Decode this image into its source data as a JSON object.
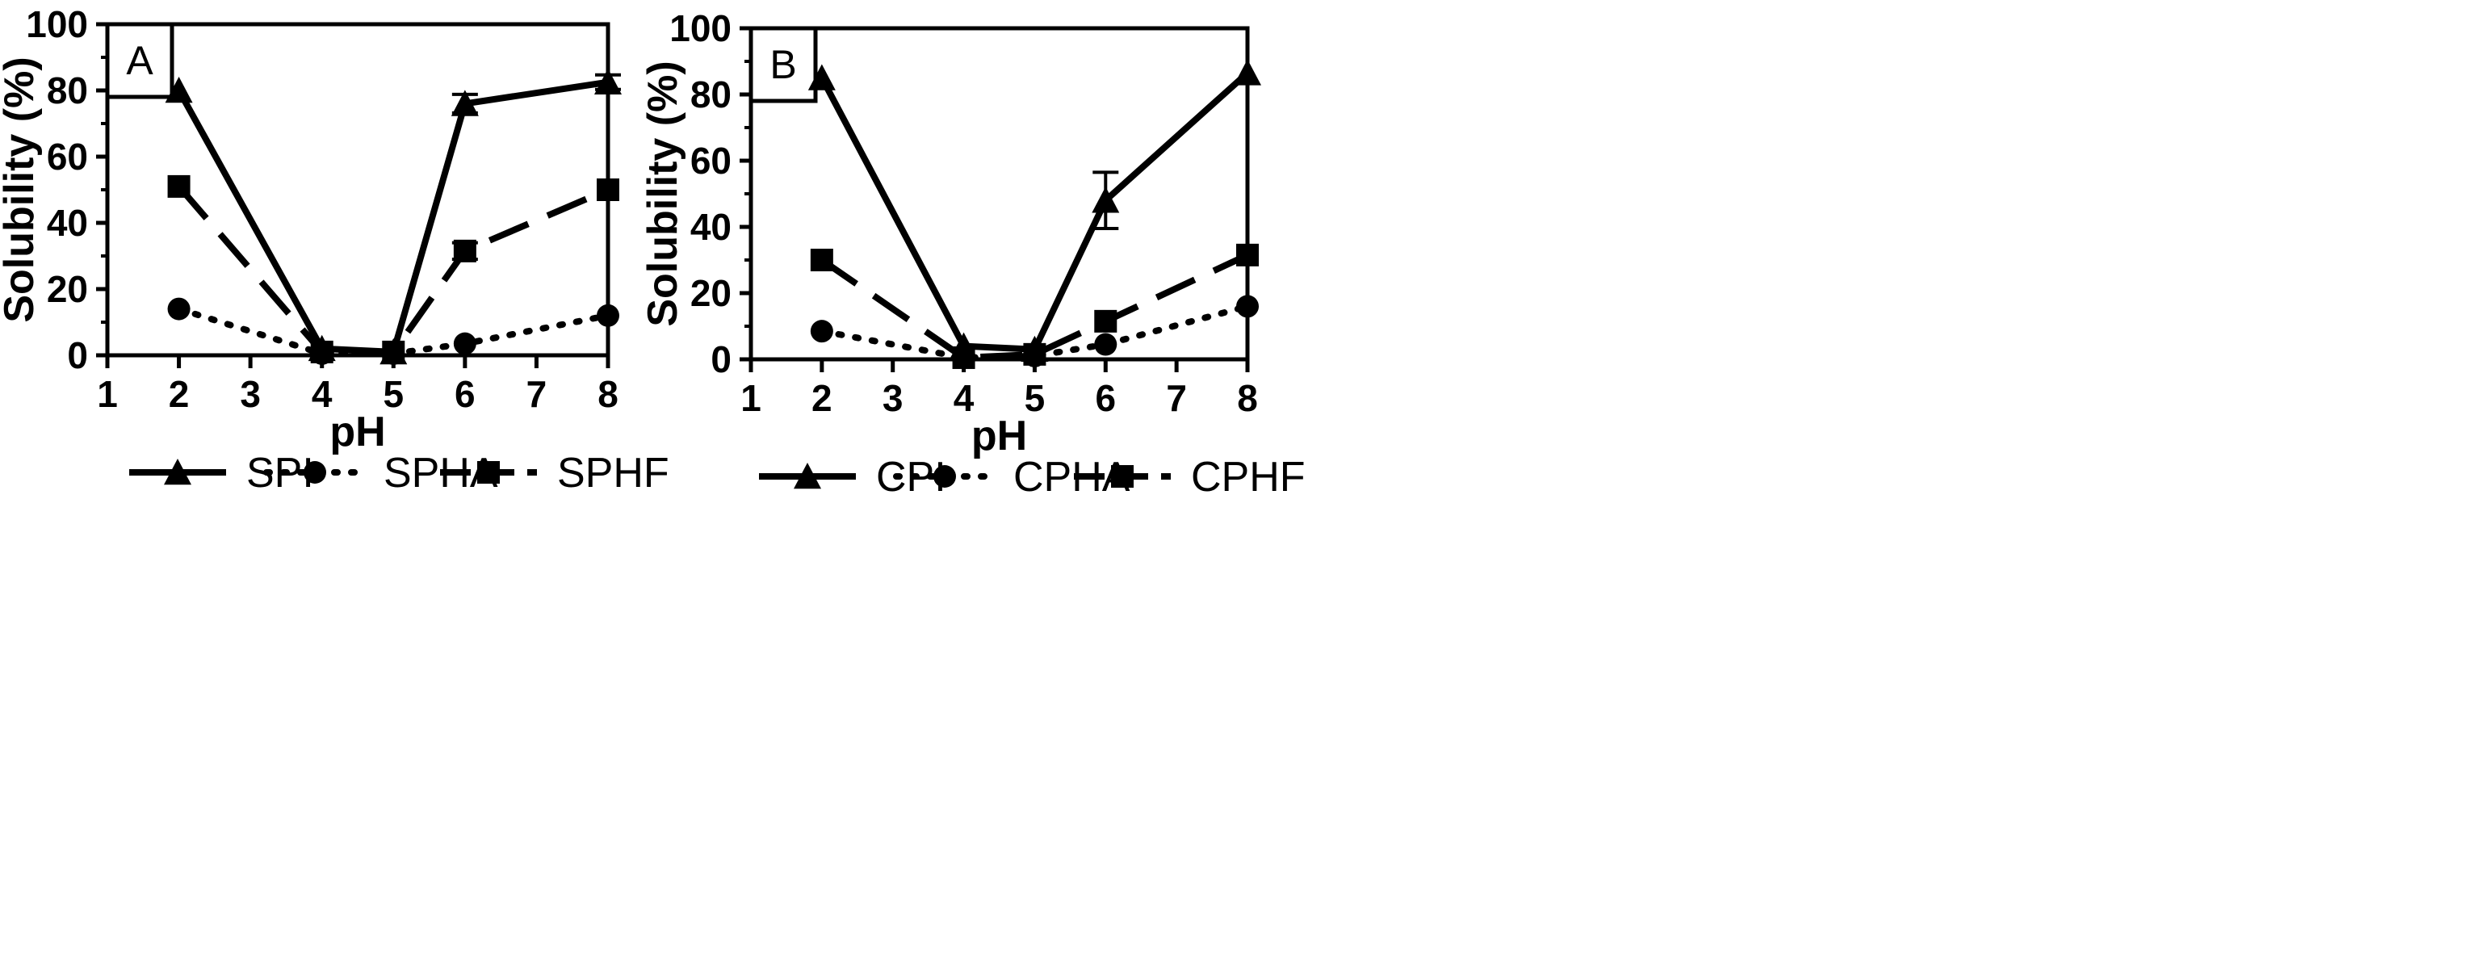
{
  "chart_data": [
    {
      "type": "line",
      "panel_label": "A",
      "xlabel": "pH",
      "ylabel": "Solubility (%)",
      "xlim": [
        1,
        8
      ],
      "ylim": [
        0,
        100
      ],
      "x_ticks": [
        "1",
        "2",
        "3",
        "4",
        "5",
        "6",
        "7",
        "8"
      ],
      "y_ticks": [
        "0",
        "20",
        "40",
        "60",
        "80",
        "100"
      ],
      "x": [
        2,
        4,
        5,
        6,
        8
      ],
      "series": [
        {
          "name": "SPI",
          "marker": "triangle",
          "line": "solid",
          "values": [
            80,
            2,
            1,
            76,
            82.5
          ],
          "errors": [
            0,
            0,
            0,
            2.8,
            2.2
          ]
        },
        {
          "name": "SPHA",
          "marker": "circle",
          "line": "dotted",
          "values": [
            14,
            0.5,
            0.5,
            3.5,
            12
          ],
          "errors": [
            0,
            0,
            0,
            0,
            0
          ]
        },
        {
          "name": "SPHF",
          "marker": "square",
          "line": "dashed",
          "values": [
            51,
            1,
            1,
            31.5,
            50
          ],
          "errors": [
            0,
            0,
            0,
            2.5,
            0
          ]
        }
      ],
      "legend_position": "bottom"
    },
    {
      "type": "line",
      "panel_label": "B",
      "xlabel": "pH",
      "ylabel": "Solubility (%)",
      "xlim": [
        1,
        8
      ],
      "ylim": [
        0,
        100
      ],
      "x_ticks": [
        "1",
        "2",
        "3",
        "4",
        "5",
        "6",
        "7",
        "8"
      ],
      "y_ticks": [
        "0",
        "20",
        "40",
        "60",
        "80",
        "100"
      ],
      "x": [
        2,
        4,
        5,
        6,
        8
      ],
      "series": [
        {
          "name": "CPI",
          "marker": "triangle",
          "line": "solid",
          "values": [
            85,
            4,
            3,
            48,
            86.5
          ],
          "errors": [
            0,
            0,
            0,
            8.5,
            0
          ]
        },
        {
          "name": "CPHA",
          "marker": "circle",
          "line": "dotted",
          "values": [
            8.5,
            0.5,
            1,
            4.5,
            16
          ],
          "errors": [
            0,
            0,
            0,
            0,
            0
          ]
        },
        {
          "name": "CPHF",
          "marker": "square",
          "line": "dashed",
          "values": [
            30,
            0.5,
            1.5,
            11.5,
            31.5
          ],
          "errors": [
            0,
            0,
            0,
            0,
            0
          ]
        }
      ],
      "legend_position": "bottom"
    }
  ]
}
